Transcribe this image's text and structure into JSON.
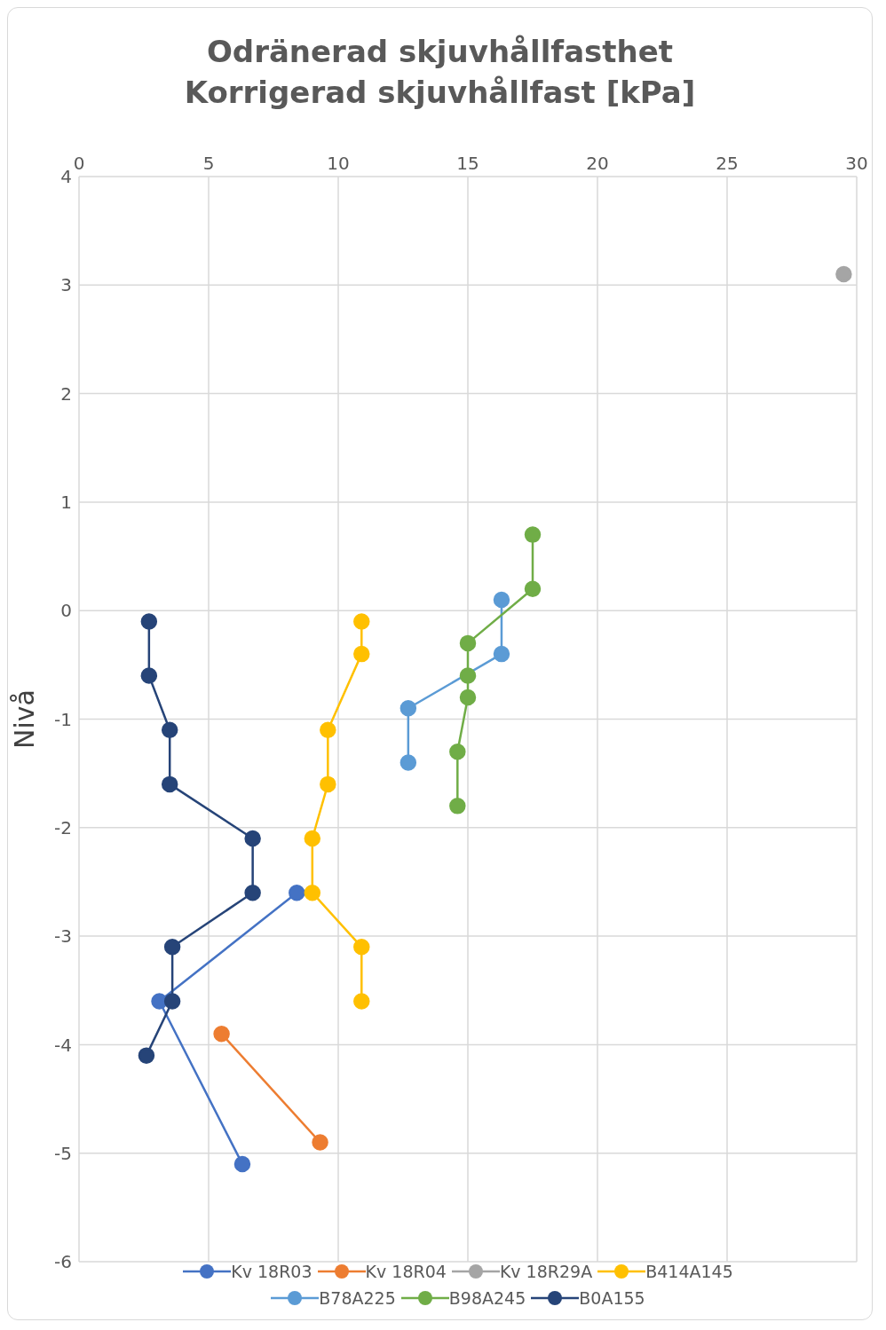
{
  "chart_data": {
    "type": "line",
    "title": "Odränerad skjuvhållfasthet",
    "subtitle": "Korrigerad skjuvhållfast [kPa]",
    "ylabel": "Nivå",
    "xlim": [
      0,
      30
    ],
    "xticks": [
      0,
      5,
      10,
      15,
      20,
      25,
      30
    ],
    "ylim": [
      -6,
      4
    ],
    "yticks": [
      -6,
      -5,
      -4,
      -3,
      -2,
      -1,
      0,
      1,
      2,
      3,
      4
    ],
    "grid": true,
    "legend": "bottom",
    "marker": "circle",
    "line_style": "solid",
    "series": [
      {
        "name": "Kv 18R03",
        "color": "#4472c4",
        "x": [
          8.4,
          3.1,
          6.3
        ],
        "values": [
          -2.6,
          -3.6,
          -5.1
        ]
      },
      {
        "name": "Kv 18R04",
        "color": "#ed7d31",
        "x": [
          5.5,
          9.3
        ],
        "values": [
          -3.9,
          -4.9
        ]
      },
      {
        "name": "Kv 18R29A",
        "color": "#a5a5a5",
        "x": [
          29.5
        ],
        "values": [
          3.1
        ]
      },
      {
        "name": "B414A145",
        "color": "#ffc000",
        "x": [
          10.9,
          10.9,
          9.6,
          9.6,
          9.0,
          9.0,
          10.9,
          10.9
        ],
        "values": [
          -0.1,
          -0.4,
          -1.1,
          -1.6,
          -2.1,
          -2.6,
          -3.1,
          -3.6
        ]
      },
      {
        "name": "B78A225",
        "color": "#5b9bd5",
        "x": [
          16.3,
          16.3,
          12.7,
          12.7
        ],
        "values": [
          0.1,
          -0.4,
          -0.9,
          -1.4
        ]
      },
      {
        "name": "B98A245",
        "color": "#70ad47",
        "x": [
          17.5,
          17.5,
          15.0,
          15.0,
          15.0,
          14.6,
          14.6
        ],
        "values": [
          0.7,
          0.2,
          -0.3,
          -0.6,
          -0.8,
          -1.3,
          -1.8
        ]
      },
      {
        "name": "B0A155",
        "color": "#264478",
        "x": [
          2.7,
          2.7,
          3.5,
          3.5,
          6.7,
          6.7,
          3.6,
          3.6,
          2.6
        ],
        "values": [
          -0.1,
          -0.6,
          -1.1,
          -1.6,
          -2.1,
          -2.6,
          -3.1,
          -3.6,
          -4.1
        ]
      }
    ]
  }
}
